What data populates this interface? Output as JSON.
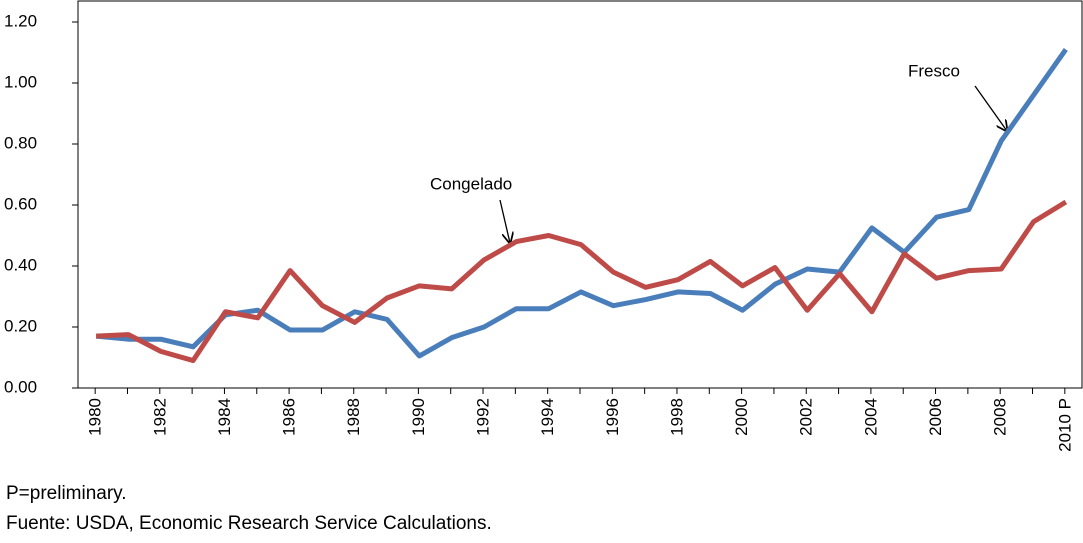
{
  "chart_data": {
    "type": "line",
    "categories": [
      "1980",
      null,
      "1982",
      null,
      "1984",
      null,
      "1986",
      null,
      "1988",
      null,
      "1990",
      null,
      "1992",
      null,
      "1994",
      null,
      "1996",
      null,
      "1998",
      null,
      "2000",
      null,
      "2002",
      null,
      "2004",
      null,
      "2006",
      null,
      "2008",
      null,
      "2010 P"
    ],
    "series": [
      {
        "name": "Fresco",
        "color": "#4a7ebb",
        "values": [
          0.17,
          0.16,
          0.16,
          0.135,
          0.24,
          0.255,
          0.19,
          0.19,
          0.25,
          0.225,
          0.105,
          0.165,
          0.2,
          0.26,
          0.26,
          0.315,
          0.27,
          0.29,
          0.315,
          0.31,
          0.255,
          0.34,
          0.39,
          0.38,
          0.525,
          0.445,
          0.56,
          0.585,
          0.81,
          0.96,
          1.11
        ]
      },
      {
        "name": "Congelado",
        "color": "#be4b48",
        "values": [
          0.17,
          0.175,
          0.12,
          0.09,
          0.25,
          0.23,
          0.385,
          0.27,
          0.215,
          0.295,
          0.335,
          0.325,
          0.42,
          0.48,
          0.5,
          0.47,
          0.38,
          0.33,
          0.355,
          0.415,
          0.335,
          0.395,
          0.255,
          0.375,
          0.25,
          0.44,
          0.36,
          0.385,
          0.39,
          0.545,
          0.61
        ]
      }
    ],
    "ylim": [
      0,
      1.2
    ],
    "yticks": [
      {
        "value": 0,
        "label": "0.00"
      },
      {
        "value": 0.2,
        "label": "0.20"
      },
      {
        "value": 0.4,
        "label": "0.40"
      },
      {
        "value": 0.6,
        "label": "0.60"
      },
      {
        "value": 0.8,
        "label": "0.80"
      },
      {
        "value": 1,
        "label": "1.00"
      },
      {
        "value": 1.2,
        "label": "1.20"
      }
    ],
    "annotations": [
      "Fresco",
      "Congelado"
    ],
    "notes": [
      "P=preliminary.",
      "Fuente: USDA, Economic Research Service Calculations."
    ]
  }
}
